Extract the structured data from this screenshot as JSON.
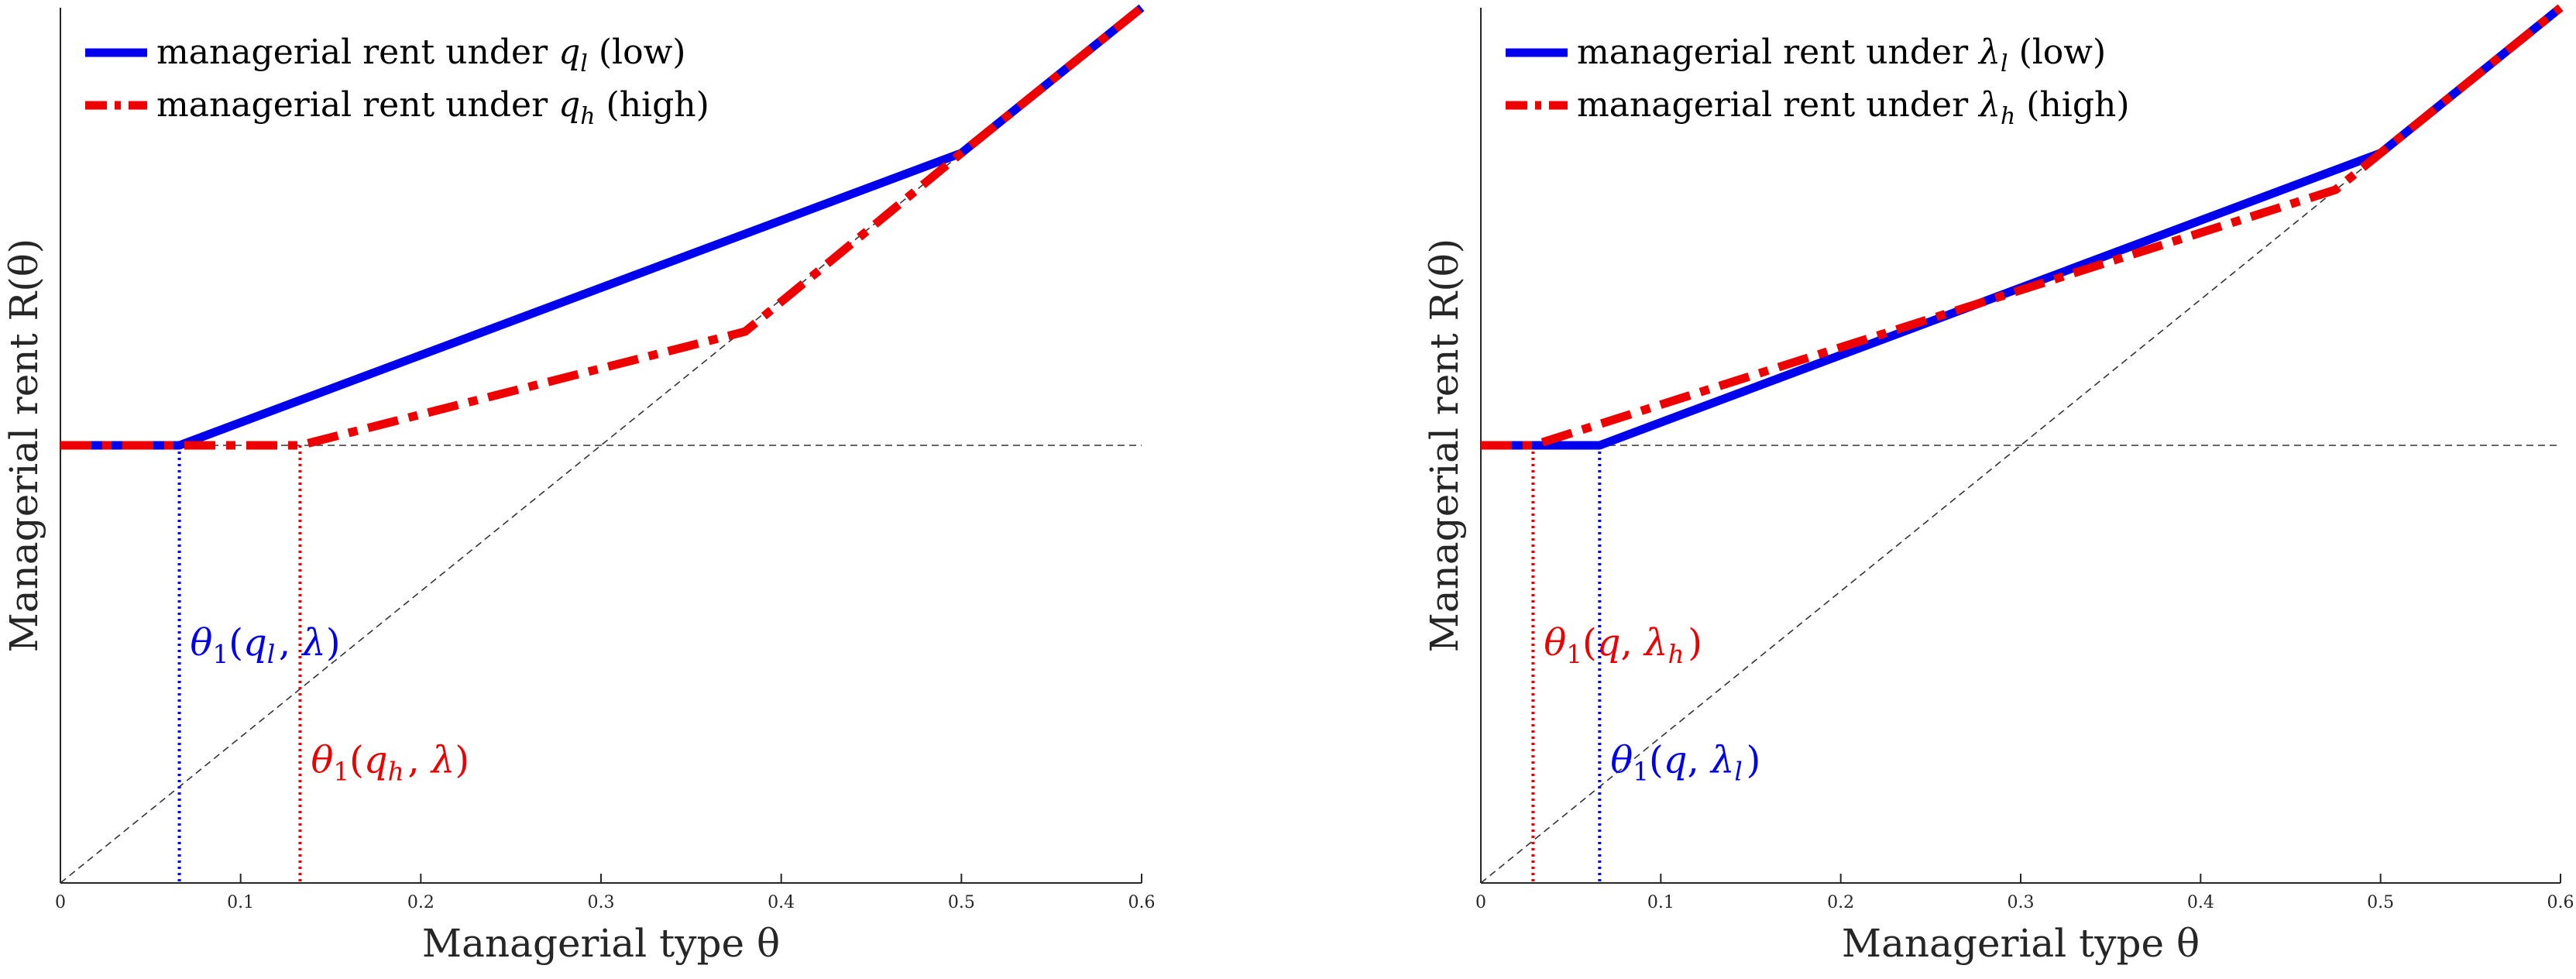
{
  "colors": {
    "blue": "#0000ee",
    "red": "#ee0000",
    "axis": "#262626",
    "guide": "#333333"
  },
  "chart_data": [
    {
      "type": "line",
      "title": "",
      "xlabel": "Managerial type θ",
      "ylabel": "Managerial rent R(θ)",
      "xlim": [
        0,
        0.6
      ],
      "ylim": [
        0,
        0.5
      ],
      "xticks": [
        "0",
        "0.1",
        "0.2",
        "0.3",
        "0.4",
        "0.5",
        "0.6"
      ],
      "yticks": [],
      "legend_position": "top-left",
      "series": [
        {
          "name": "managerial rent under q_l (low)",
          "legend_label": "managerial rent under",
          "symbol": "q",
          "subscript": "l",
          "suffix": "(low)",
          "style": "solid",
          "color": "blue",
          "points": [
            [
              0,
              0.25
            ],
            [
              0.066,
              0.25
            ],
            [
              0.5,
              0.417
            ],
            [
              0.6,
              0.5
            ]
          ]
        },
        {
          "name": "managerial rent under q_h (high)",
          "legend_label": "managerial rent under",
          "symbol": "q",
          "subscript": "h",
          "suffix": "(high)",
          "style": "dashdot",
          "color": "red",
          "points": [
            [
              0,
              0.25
            ],
            [
              0.133,
              0.25
            ],
            [
              0.38,
              0.315
            ],
            [
              0.5,
              0.417
            ],
            [
              0.6,
              0.5
            ]
          ]
        }
      ],
      "reference_lines": [
        {
          "name": "horizontal reference",
          "points": [
            [
              0,
              0.25
            ],
            [
              0.6,
              0.25
            ]
          ]
        },
        {
          "name": "45-degree reference",
          "points": [
            [
              0,
              0
            ],
            [
              0.6,
              0.5
            ]
          ]
        }
      ],
      "threshold_markers": [
        {
          "x": 0.066,
          "color": "blue",
          "label_symbol": "θ",
          "label_sub": "1",
          "label_args": "(q_l, λ)",
          "label_y": 0.13
        },
        {
          "x": 0.133,
          "color": "red",
          "label_symbol": "θ",
          "label_sub": "1",
          "label_args": "(q_h, λ)",
          "label_y": 0.063
        }
      ]
    },
    {
      "type": "line",
      "title": "",
      "xlabel": "Managerial type θ",
      "ylabel": "Managerial rent R(θ)",
      "xlim": [
        0,
        0.6
      ],
      "ylim": [
        0,
        0.5
      ],
      "xticks": [
        "0",
        "0.1",
        "0.2",
        "0.3",
        "0.4",
        "0.5",
        "0.6"
      ],
      "yticks": [],
      "legend_position": "top-left",
      "series": [
        {
          "name": "managerial rent under λ_l (low)",
          "legend_label": "managerial rent under",
          "symbol": "λ",
          "subscript": "l",
          "suffix": "(low)",
          "style": "solid",
          "color": "blue",
          "points": [
            [
              0,
              0.25
            ],
            [
              0.066,
              0.25
            ],
            [
              0.5,
              0.417
            ],
            [
              0.6,
              0.5
            ]
          ]
        },
        {
          "name": "managerial rent under λ_h (high)",
          "legend_label": "managerial rent under",
          "symbol": "λ",
          "subscript": "h",
          "suffix": "(high)",
          "style": "dashdot",
          "color": "red",
          "points": [
            [
              0,
              0.25
            ],
            [
              0.029,
              0.25
            ],
            [
              0.475,
              0.396
            ],
            [
              0.5,
              0.417
            ],
            [
              0.6,
              0.5
            ]
          ]
        }
      ],
      "reference_lines": [
        {
          "name": "horizontal reference",
          "points": [
            [
              0,
              0.25
            ],
            [
              0.6,
              0.25
            ]
          ]
        },
        {
          "name": "45-degree reference",
          "points": [
            [
              0,
              0
            ],
            [
              0.6,
              0.5
            ]
          ]
        }
      ],
      "threshold_markers": [
        {
          "x": 0.029,
          "color": "red",
          "label_symbol": "θ",
          "label_sub": "1",
          "label_args": "(q, λ_h)",
          "label_y": 0.13
        },
        {
          "x": 0.066,
          "color": "blue",
          "label_symbol": "θ",
          "label_sub": "1",
          "label_args": "(q, λ_l)",
          "label_y": 0.063
        }
      ]
    }
  ]
}
